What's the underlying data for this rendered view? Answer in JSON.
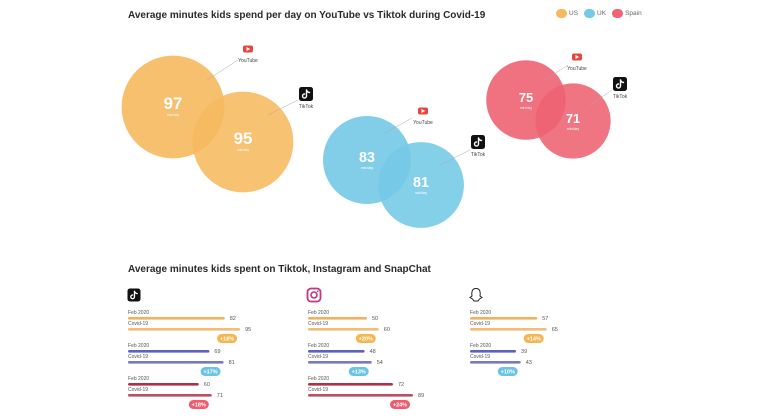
{
  "titles": {
    "top": "Average minutes kids spend per day on YouTube vs Tiktok during Covid-19",
    "bottom": "Average minutes kids spent on Tiktok, Instagram and SnapChat"
  },
  "colors": {
    "us": "#f6b95e",
    "uk": "#74c9e6",
    "spain": "#ee6272",
    "youtube": "#e7453f",
    "tiktok": "#111111",
    "bar_us": "#f0b25e",
    "bar_uk": "#5f63b7",
    "bar_spain": "#b03048",
    "badge_us": "#f5b650",
    "badge_uk": "#6bc4e4",
    "badge_spain": "#ee5c6e"
  },
  "legend": [
    {
      "label": "US",
      "color_key": "us"
    },
    {
      "label": "UK",
      "color_key": "uk"
    },
    {
      "label": "Spain",
      "color_key": "spain"
    }
  ],
  "chart_data": [
    {
      "type": "bubble",
      "title": "Average minutes kids spend per day on YouTube vs Tiktok during Covid-19",
      "unit_label": "min/day",
      "groups": [
        {
          "country": "US",
          "youtube": 97,
          "tiktok": 95
        },
        {
          "country": "UK",
          "youtube": 83,
          "tiktok": 81
        },
        {
          "country": "Spain",
          "youtube": 75,
          "tiktok": 71
        }
      ],
      "platform_labels": {
        "youtube": "YouTube",
        "tiktok": "TikTok"
      }
    },
    {
      "type": "bar",
      "title": "Average minutes kids spent on Tiktok, Instagram and SnapChat",
      "row_labels": [
        "Feb 2020",
        "Covid-19"
      ],
      "panels": [
        {
          "platform": "tiktok-icon",
          "groups": [
            {
              "country": "US",
              "feb": 82,
              "covid": 95,
              "change": "+16%"
            },
            {
              "country": "UK",
              "feb": 69,
              "covid": 81,
              "change": "+17%"
            },
            {
              "country": "Spain",
              "feb": 60,
              "covid": 71,
              "change": "+18%"
            }
          ]
        },
        {
          "platform": "instagram-icon",
          "groups": [
            {
              "country": "US",
              "feb": 50,
              "covid": 60,
              "change": "+20%"
            },
            {
              "country": "UK",
              "feb": 48,
              "covid": 54,
              "change": "+13%"
            },
            {
              "country": "Spain",
              "feb": 72,
              "covid": 89,
              "change": "+24%"
            }
          ]
        },
        {
          "platform": "snapchat-icon",
          "groups": [
            {
              "country": "US",
              "feb": 57,
              "covid": 65,
              "change": "+14%"
            },
            {
              "country": "UK",
              "feb": 39,
              "covid": 43,
              "change": "+10%"
            }
          ]
        }
      ]
    }
  ]
}
